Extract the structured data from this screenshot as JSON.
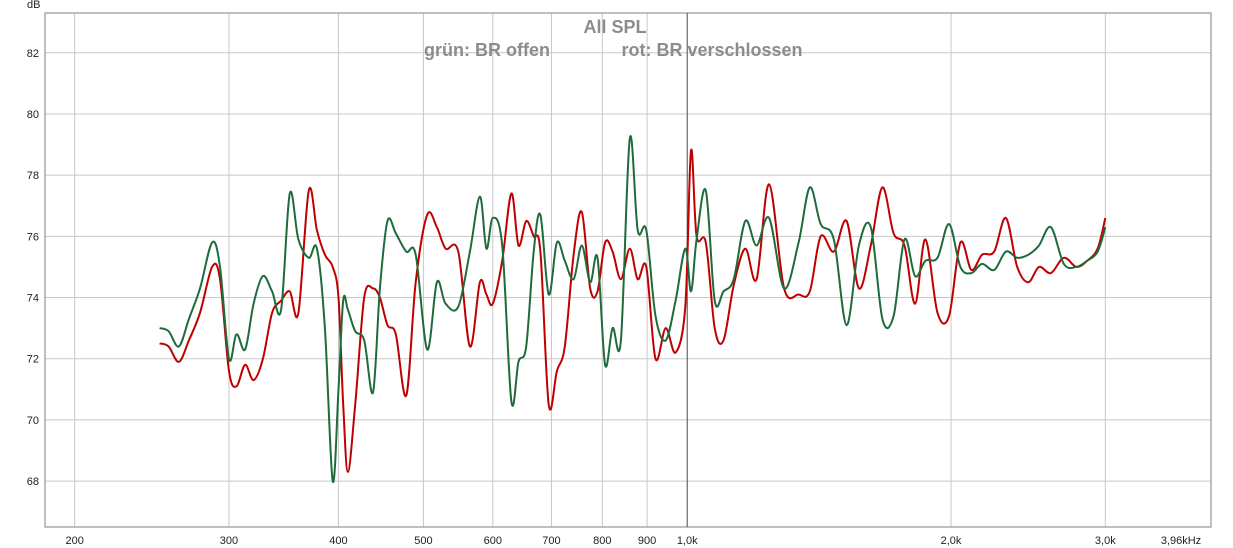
{
  "chart_data": {
    "type": "line",
    "title": "All SPL",
    "subtitle_left": "grün: BR offen",
    "subtitle_right": "rot: BR verschlossen",
    "ylabel": "dB",
    "x_scale": "log",
    "xlim": [
      185,
      3960
    ],
    "ylim": [
      66.5,
      83.3
    ],
    "grid": true,
    "legend": "none",
    "x_ticks": [
      {
        "value": 200,
        "label": "200"
      },
      {
        "value": 300,
        "label": "300"
      },
      {
        "value": 400,
        "label": "400"
      },
      {
        "value": 500,
        "label": "500"
      },
      {
        "value": 600,
        "label": "600"
      },
      {
        "value": 700,
        "label": "700"
      },
      {
        "value": 800,
        "label": "800"
      },
      {
        "value": 900,
        "label": "900"
      },
      {
        "value": 1000,
        "label": "1,0k"
      },
      {
        "value": 2000,
        "label": "2,0k"
      },
      {
        "value": 3000,
        "label": "3,0k"
      },
      {
        "value": 3960,
        "label": "3,96kHz"
      }
    ],
    "y_ticks": [
      {
        "value": 68,
        "label": "68"
      },
      {
        "value": 70,
        "label": "70"
      },
      {
        "value": 72,
        "label": "72"
      },
      {
        "value": 74,
        "label": "74"
      },
      {
        "value": 76,
        "label": "76"
      },
      {
        "value": 78,
        "label": "78"
      },
      {
        "value": 80,
        "label": "80"
      },
      {
        "value": 82,
        "label": "82"
      }
    ],
    "cursor_x": 1000,
    "colors": {
      "green": "#1e6b3c",
      "red": "#c00000",
      "grid": "#c8c8c8",
      "frame": "#808080",
      "cursor": "#555555"
    },
    "series": [
      {
        "color": "#c00000",
        "x": [
          250,
          256,
          263,
          270,
          278,
          287,
          293,
          300,
          306,
          313,
          320,
          328,
          336,
          344,
          352,
          360,
          370,
          378,
          386,
          394,
          400,
          405,
          410,
          418,
          428,
          438,
          446,
          455,
          465,
          478,
          490,
          505,
          518,
          530,
          548,
          565,
          580,
          590,
          600,
          615,
          630,
          642,
          655,
          668,
          680,
          695,
          710,
          725,
          742,
          758,
          775,
          790,
          806,
          822,
          840,
          860,
          878,
          898,
          920,
          945,
          970,
          995,
          1010,
          1025,
          1050,
          1075,
          1100,
          1130,
          1165,
          1200,
          1240,
          1290,
          1340,
          1380,
          1420,
          1470,
          1520,
          1570,
          1620,
          1670,
          1720,
          1770,
          1820,
          1870,
          1930,
          1990,
          2050,
          2110,
          2170,
          2240,
          2310,
          2380,
          2450,
          2520,
          2600,
          2690,
          2780,
          2860,
          2940,
          3000
        ],
        "y": [
          72.5,
          72.4,
          71.9,
          72.6,
          73.5,
          75.0,
          74.6,
          71.6,
          71.1,
          71.8,
          71.3,
          72.0,
          73.5,
          73.9,
          74.2,
          73.5,
          77.5,
          76.2,
          75.4,
          75.0,
          74.0,
          70.5,
          68.3,
          70.5,
          74.0,
          74.3,
          74.0,
          73.1,
          72.8,
          70.8,
          74.5,
          76.7,
          76.3,
          75.6,
          75.5,
          72.4,
          74.5,
          74.1,
          73.8,
          75.2,
          77.4,
          75.7,
          76.5,
          76.0,
          75.5,
          70.5,
          71.6,
          72.4,
          75.4,
          76.8,
          74.3,
          74.2,
          75.8,
          75.5,
          74.6,
          75.6,
          74.6,
          75.0,
          72.0,
          73.0,
          72.2,
          73.7,
          78.8,
          76.0,
          75.8,
          73.0,
          72.6,
          74.4,
          75.6,
          74.6,
          77.7,
          74.3,
          74.1,
          74.2,
          76.0,
          75.5,
          76.5,
          74.3,
          75.7,
          77.6,
          76.1,
          75.7,
          73.8,
          75.9,
          73.5,
          73.4,
          75.8,
          74.9,
          75.4,
          75.5,
          76.6,
          75.0,
          74.5,
          75.0,
          74.8,
          75.3,
          75.0,
          75.2,
          75.6,
          76.6
        ]
      },
      {
        "color": "#1e6b3c",
        "x": [
          250,
          256,
          263,
          270,
          278,
          287,
          293,
          300,
          306,
          313,
          320,
          328,
          336,
          344,
          352,
          360,
          370,
          378,
          386,
          394,
          400,
          405,
          410,
          418,
          428,
          438,
          446,
          455,
          465,
          478,
          490,
          505,
          518,
          530,
          548,
          565,
          580,
          590,
          600,
          615,
          630,
          642,
          655,
          668,
          680,
          695,
          710,
          725,
          742,
          758,
          775,
          790,
          806,
          822,
          840,
          860,
          878,
          898,
          920,
          945,
          970,
          995,
          1010,
          1025,
          1050,
          1075,
          1100,
          1130,
          1165,
          1200,
          1240,
          1290,
          1340,
          1380,
          1420,
          1470,
          1520,
          1570,
          1620,
          1670,
          1720,
          1770,
          1820,
          1870,
          1930,
          1990,
          2050,
          2110,
          2170,
          2240,
          2310,
          2380,
          2450,
          2520,
          2600,
          2690,
          2780,
          2860,
          2940,
          3000
        ],
        "y": [
          73.0,
          72.9,
          72.4,
          73.3,
          74.3,
          75.8,
          75.0,
          72.0,
          72.8,
          72.3,
          73.8,
          74.7,
          74.2,
          73.6,
          77.4,
          75.9,
          75.3,
          75.6,
          73.0,
          68.0,
          71.0,
          73.9,
          73.6,
          72.9,
          72.6,
          70.9,
          74.3,
          76.5,
          76.1,
          75.5,
          75.4,
          72.3,
          74.5,
          73.8,
          73.7,
          75.5,
          77.3,
          75.6,
          76.6,
          75.7,
          70.6,
          71.9,
          72.4,
          75.5,
          76.7,
          74.1,
          75.8,
          75.2,
          74.6,
          75.7,
          74.5,
          75.3,
          71.8,
          73.0,
          72.6,
          79.2,
          76.2,
          76.2,
          73.4,
          72.6,
          73.9,
          75.6,
          74.2,
          75.9,
          77.5,
          73.9,
          74.2,
          74.6,
          76.5,
          75.7,
          76.6,
          74.3,
          75.8,
          77.6,
          76.4,
          75.9,
          73.1,
          75.7,
          76.3,
          73.3,
          73.4,
          75.9,
          74.7,
          75.2,
          75.3,
          76.4,
          75.0,
          74.8,
          75.1,
          74.9,
          75.5,
          75.3,
          75.4,
          75.7,
          76.3,
          75.1,
          75.0,
          75.2,
          75.5,
          76.3
        ]
      }
    ]
  }
}
